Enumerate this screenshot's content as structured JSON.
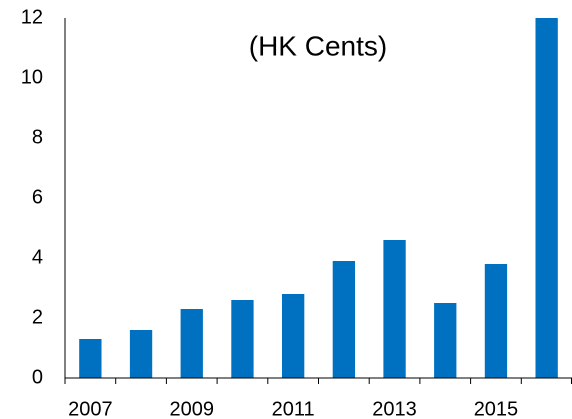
{
  "chart_data": {
    "type": "bar",
    "title": "(HK Cents)",
    "categories": [
      "2007",
      null,
      "2009",
      null,
      "2011",
      null,
      "2013",
      null,
      "2015",
      null
    ],
    "values": [
      1.3,
      1.6,
      2.3,
      2.6,
      2.8,
      3.9,
      4.6,
      2.5,
      3.8,
      12
    ],
    "color": "#0070c0",
    "ylim": [
      0,
      12
    ],
    "yticks": [
      0,
      2,
      4,
      6,
      8,
      10,
      12
    ],
    "grid": false
  }
}
